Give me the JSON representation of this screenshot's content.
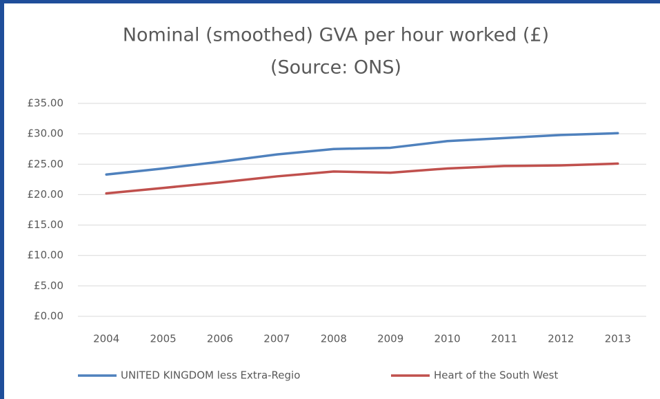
{
  "chart_data": {
    "type": "line",
    "title": "Nominal (smoothed) GVA per hour worked (£)",
    "subtitle": "(Source: ONS)",
    "categories": [
      "2004",
      "2005",
      "2006",
      "2007",
      "2008",
      "2009",
      "2010",
      "2011",
      "2012",
      "2013"
    ],
    "series": [
      {
        "name": "UNITED KINGDOM less Extra-Regio",
        "color": "#4f81bd",
        "values": [
          23.3,
          24.3,
          25.4,
          26.6,
          27.5,
          27.7,
          28.8,
          29.3,
          29.8,
          30.1
        ]
      },
      {
        "name": "Heart of the South West",
        "color": "#c0504d",
        "values": [
          20.2,
          21.1,
          22.0,
          23.0,
          23.8,
          23.6,
          24.3,
          24.7,
          24.8,
          25.1
        ]
      }
    ],
    "ylim": [
      0,
      35
    ],
    "yticks": [
      {
        "value": 0,
        "label": "£0.00"
      },
      {
        "value": 5,
        "label": "£5.00"
      },
      {
        "value": 10,
        "label": "£10.00"
      },
      {
        "value": 15,
        "label": "£15.00"
      },
      {
        "value": 20,
        "label": "£20.00"
      },
      {
        "value": 25,
        "label": "£25.00"
      },
      {
        "value": 30,
        "label": "£30.00"
      },
      {
        "value": 35,
        "label": "£35.00"
      }
    ],
    "grid": true,
    "legend": "bottom"
  }
}
